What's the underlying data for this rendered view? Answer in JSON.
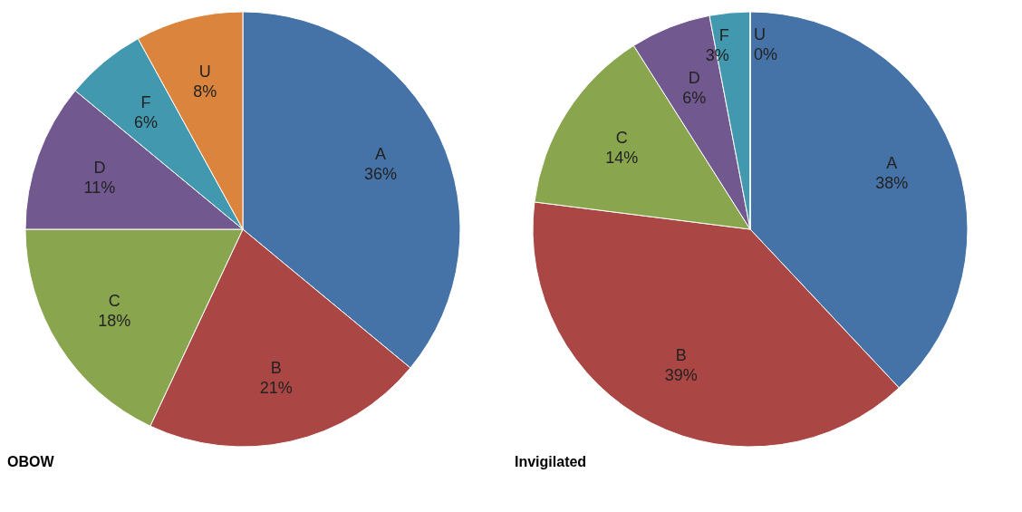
{
  "chart_data": [
    {
      "type": "pie",
      "title": "OBOW",
      "categories": [
        "A",
        "B",
        "C",
        "D",
        "F",
        "U"
      ],
      "values": [
        36,
        21,
        18,
        11,
        6,
        8
      ],
      "value_labels": [
        "36%",
        "21%",
        "18%",
        "11%",
        "6%",
        "8%"
      ],
      "colors": [
        "#4572a7",
        "#aa4643",
        "#89a54e",
        "#71588f",
        "#4198af",
        "#db843d"
      ],
      "legend": false
    },
    {
      "type": "pie",
      "title": "Invigilated",
      "categories": [
        "A",
        "B",
        "C",
        "D",
        "F",
        "U"
      ],
      "values": [
        38,
        39,
        14,
        6,
        3,
        0
      ],
      "value_labels": [
        "38%",
        "39%",
        "14%",
        "6%",
        "3%",
        "0%"
      ],
      "colors": [
        "#4572a7",
        "#aa4643",
        "#89a54e",
        "#71588f",
        "#4198af",
        "#db843d"
      ],
      "legend": false
    }
  ]
}
